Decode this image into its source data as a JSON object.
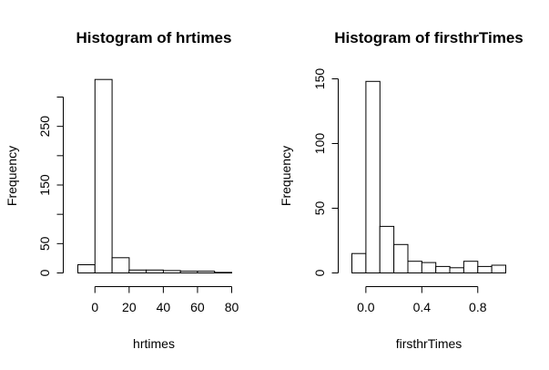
{
  "chart_data": [
    {
      "type": "bar",
      "title": "Histogram of hrtimes",
      "xlabel": "hrtimes",
      "ylabel": "Frequency",
      "bin_edges": [
        -10,
        0,
        10,
        20,
        30,
        40,
        50,
        60,
        70,
        80
      ],
      "values": [
        14,
        330,
        26,
        5,
        5,
        4,
        3,
        3,
        1
      ],
      "xlim": [
        -10,
        80
      ],
      "ylim": [
        0,
        300
      ],
      "xticks": [
        0,
        20,
        40,
        60,
        80
      ],
      "xtick_labels": [
        "0",
        "20",
        "40",
        "60",
        "80"
      ],
      "yticks": [
        0,
        50,
        100,
        150,
        200,
        250,
        300
      ],
      "ytick_labels": [
        "0",
        "50",
        "",
        "150",
        "",
        "250",
        ""
      ]
    },
    {
      "type": "bar",
      "title": "Histogram of firsthrTimes",
      "xlabel": "firsthrTimes",
      "ylabel": "Frequency",
      "bin_edges": [
        -0.1,
        0.0,
        0.1,
        0.2,
        0.3,
        0.4,
        0.5,
        0.6,
        0.7,
        0.8,
        0.9,
        1.0
      ],
      "values": [
        15,
        148,
        36,
        22,
        9,
        8,
        5,
        4,
        9,
        5,
        6
      ],
      "xlim": [
        -0.1,
        1.0
      ],
      "ylim": [
        0,
        150
      ],
      "xticks": [
        0.0,
        0.4,
        0.8
      ],
      "xtick_labels": [
        "0.0",
        "0.4",
        "0.8"
      ],
      "yticks": [
        0,
        50,
        100,
        150
      ],
      "ytick_labels": [
        "0",
        "50",
        "100",
        "150"
      ]
    }
  ]
}
